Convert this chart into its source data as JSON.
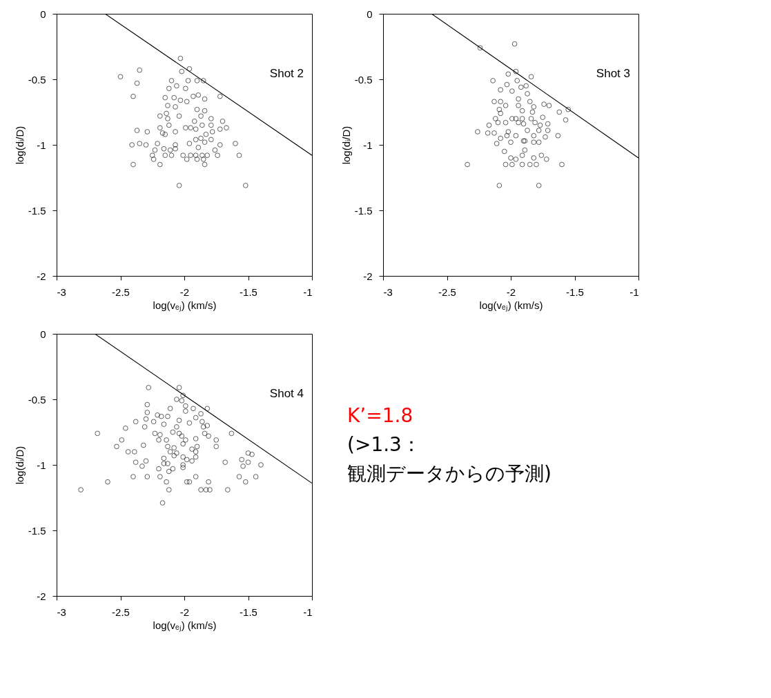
{
  "chart_data": [
    {
      "type": "scatter",
      "xlabel": "log(vₑⱼ) (km/s)",
      "ylabel": "log(dᵢ/D)",
      "annotations": [
        "Shot 2"
      ],
      "xlim": [
        -3,
        -1
      ],
      "ylim": [
        -2,
        0
      ],
      "xticks": [
        -3,
        -2.5,
        -2,
        -1.5,
        -1
      ],
      "yticks": [
        -2,
        -1.5,
        -1,
        -0.5,
        0
      ],
      "grid": false,
      "series": [
        {
          "color": "#000000",
          "marker": "circle",
          "x": [
            -2.5,
            -2.35,
            -2.37,
            -2.4,
            -2.03,
            -1.96,
            -2.02,
            -1.85,
            -1.9,
            -1.72,
            -2.1,
            -1.97,
            -2.12,
            -2.06,
            -1.99,
            -2.15,
            -2.08,
            -2.03,
            -1.98,
            -1.93,
            -1.89,
            -1.84,
            -2.13,
            -2.07,
            -2.04,
            -2.19,
            -2.14,
            -2.13,
            -2.12,
            -1.9,
            -1.84,
            -1.87,
            -1.79,
            -1.7,
            -1.67,
            -1.72,
            -1.79,
            -1.92,
            -1.95,
            -1.91,
            -1.86,
            -1.99,
            -2.07,
            -2.19,
            -2.17,
            -2.15,
            -2.37,
            -2.29,
            -2.41,
            -2.35,
            -2.3,
            -2.21,
            -2.07,
            -1.96,
            -1.91,
            -1.87,
            -1.79,
            -1.83,
            -1.78,
            -1.84,
            -1.89,
            -1.76,
            -1.72,
            -1.6,
            -1.57,
            -1.74,
            -1.82,
            -1.86,
            -1.91,
            -1.95,
            -2.01,
            -1.98,
            -1.9,
            -1.85,
            -1.84,
            -2.16,
            -2.11,
            -2.07,
            -2.15,
            -2.1,
            -2.23,
            -2.25,
            -2.24,
            -2.19,
            -2.4,
            -2.04,
            -1.52
          ],
          "values": [
            -0.48,
            -0.43,
            -0.53,
            -0.63,
            -0.34,
            -0.42,
            -0.44,
            -0.51,
            -0.51,
            -0.63,
            -0.51,
            -0.51,
            -0.57,
            -0.55,
            -0.57,
            -0.64,
            -0.64,
            -0.66,
            -0.67,
            -0.63,
            -0.62,
            -0.65,
            -0.7,
            -0.71,
            -0.78,
            -0.78,
            -0.76,
            -0.8,
            -0.85,
            -0.73,
            -0.74,
            -0.78,
            -0.8,
            -0.82,
            -0.87,
            -0.88,
            -0.85,
            -0.82,
            -0.87,
            -0.88,
            -0.85,
            -0.87,
            -0.9,
            -0.87,
            -0.91,
            -0.92,
            -0.89,
            -0.9,
            -1.0,
            -0.99,
            -1.0,
            -0.99,
            -1.0,
            -0.99,
            -0.96,
            -0.95,
            -0.96,
            -0.92,
            -0.9,
            -0.98,
            -1.02,
            -1.04,
            -1.0,
            -0.99,
            -1.08,
            -1.08,
            -1.08,
            -1.08,
            -1.08,
            -1.08,
            -1.08,
            -1.11,
            -1.11,
            -1.11,
            -1.15,
            -1.03,
            -1.04,
            -1.03,
            -1.08,
            -1.08,
            -1.04,
            -1.08,
            -1.11,
            -1.15,
            -1.15,
            -1.31,
            -1.31
          ]
        },
        {
          "type": "line",
          "color": "#000000",
          "x": [
            -2.62,
            -1
          ],
          "values": [
            0,
            -1.08
          ]
        }
      ]
    },
    {
      "type": "scatter",
      "xlabel": "log(vₑⱼ) (km/s)",
      "ylabel": "log(dᵢ/D)",
      "annotations": [
        "Shot 3"
      ],
      "xlim": [
        -3,
        -1
      ],
      "ylim": [
        -2,
        0
      ],
      "xticks": [
        -3,
        -2.5,
        -2,
        -1.5,
        -1
      ],
      "yticks": [
        -2,
        -1.5,
        -1,
        -0.5,
        0
      ],
      "grid": false,
      "series": [
        {
          "color": "#000000",
          "marker": "circle",
          "x": [
            -2.24,
            -1.97,
            -1.96,
            -2.02,
            -1.84,
            -2.14,
            -2.03,
            -1.95,
            -1.88,
            -2.08,
            -1.99,
            -1.92,
            -1.87,
            -1.94,
            -1.85,
            -2.13,
            -2.08,
            -2.04,
            -1.94,
            -1.82,
            -1.74,
            -1.7,
            -1.62,
            -1.55,
            -1.57,
            -1.91,
            -2.09,
            -2.08,
            -1.83,
            -2.12,
            -1.99,
            -1.96,
            -1.91,
            -1.84,
            -1.75,
            -2.17,
            -2.1,
            -2.04,
            -1.94,
            -1.9,
            -1.81,
            -1.77,
            -1.71,
            -2.26,
            -2.18,
            -2.13,
            -2.02,
            -1.87,
            -1.78,
            -1.71,
            -1.63,
            -1.73,
            -1.82,
            -1.96,
            -2.03,
            -2.08,
            -2.11,
            -2.0,
            -1.9,
            -1.89,
            -1.82,
            -1.78,
            -2.05,
            -1.89,
            -1.91,
            -1.76,
            -1.72,
            -2.0,
            -1.96,
            -1.82,
            -2.34,
            -2.04,
            -1.99,
            -1.91,
            -1.85,
            -1.8,
            -1.6,
            -2.09,
            -1.78
          ],
          "values": [
            -0.26,
            -0.23,
            -0.44,
            -0.46,
            -0.48,
            -0.51,
            -0.54,
            -0.51,
            -0.55,
            -0.58,
            -0.59,
            -0.56,
            -0.61,
            -0.65,
            -0.67,
            -0.67,
            -0.67,
            -0.7,
            -0.7,
            -0.71,
            -0.69,
            -0.7,
            -0.75,
            -0.73,
            -0.81,
            -0.74,
            -0.73,
            -0.76,
            -0.75,
            -0.8,
            -0.8,
            -0.8,
            -0.8,
            -0.8,
            -0.79,
            -0.85,
            -0.83,
            -0.83,
            -0.83,
            -0.84,
            -0.83,
            -0.85,
            -0.84,
            -0.9,
            -0.91,
            -0.91,
            -0.9,
            -0.89,
            -0.89,
            -0.89,
            -0.93,
            -0.94,
            -0.93,
            -0.93,
            -0.93,
            -0.95,
            -0.99,
            -0.98,
            -0.97,
            -0.97,
            -0.98,
            -0.98,
            -1.05,
            -1.04,
            -1.08,
            -1.08,
            -1.11,
            -1.1,
            -1.11,
            -1.1,
            -1.15,
            -1.15,
            -1.15,
            -1.15,
            -1.15,
            -1.15,
            -1.15,
            -1.31,
            -1.31
          ]
        },
        {
          "type": "line",
          "color": "#000000",
          "x": [
            -2.62,
            -1
          ],
          "values": [
            0,
            -1.1
          ]
        }
      ]
    },
    {
      "type": "scatter",
      "xlabel": "log(vₑⱼ) (km/s)",
      "ylabel": "log(dᵢ/D)",
      "annotations": [
        "Shot 4"
      ],
      "xlim": [
        -3,
        -1
      ],
      "ylim": [
        -2,
        0
      ],
      "xticks": [
        -3,
        -2.5,
        -2,
        -1.5,
        -1
      ],
      "yticks": [
        -2,
        -1.5,
        -1,
        -0.5,
        0
      ],
      "grid": false,
      "series": [
        {
          "color": "#000000",
          "marker": "circle",
          "x": [
            -2.28,
            -2.04,
            -2.01,
            -2.06,
            -2.02,
            -2.29,
            -1.99,
            -2.11,
            -1.93,
            -1.82,
            -1.99,
            -1.87,
            -2.29,
            -2.21,
            -2.18,
            -2.13,
            -1.91,
            -2.3,
            -2.24,
            -2.04,
            -1.86,
            -2.38,
            -2.16,
            -1.96,
            -1.82,
            -2.46,
            -2.31,
            -2.06,
            -1.85,
            -2.68,
            -1.63,
            -2.09,
            -2.04,
            -2.23,
            -1.84,
            -2.49,
            -2.19,
            -2.2,
            -2.14,
            -2.02,
            -1.99,
            -1.91,
            -1.81,
            -1.75,
            -2.53,
            -2.32,
            -2.13,
            -2.08,
            -2.01,
            -1.94,
            -1.9,
            -1.75,
            -2.44,
            -2.39,
            -2.11,
            -2.06,
            -1.91,
            -2.08,
            -2.01,
            -1.91,
            -1.5,
            -1.47,
            -2.3,
            -2.16,
            -1.98,
            -1.94,
            -1.55,
            -1.5,
            -2.38,
            -2.33,
            -2.16,
            -2.13,
            -1.68,
            -1.54,
            -1.4,
            -2.2,
            -2.09,
            -2.01,
            -2.12,
            -2.01,
            -2.4,
            -2.29,
            -2.19,
            -1.91,
            -1.57,
            -1.44,
            -2.6,
            -2.14,
            -1.98,
            -1.96,
            -1.81,
            -1.52,
            -2.81,
            -2.12,
            -1.87,
            -1.83,
            -1.8,
            -1.66,
            -2.17
          ],
          "values": [
            -0.41,
            -0.41,
            -0.47,
            -0.5,
            -0.51,
            -0.54,
            -0.55,
            -0.57,
            -0.57,
            -0.57,
            -0.59,
            -0.61,
            -0.6,
            -0.62,
            -0.63,
            -0.63,
            -0.64,
            -0.65,
            -0.67,
            -0.66,
            -0.67,
            -0.67,
            -0.69,
            -0.68,
            -0.7,
            -0.72,
            -0.71,
            -0.71,
            -0.71,
            -0.76,
            -0.76,
            -0.75,
            -0.76,
            -0.76,
            -0.76,
            -0.81,
            -0.77,
            -0.81,
            -0.81,
            -0.78,
            -0.81,
            -0.8,
            -0.78,
            -0.81,
            -0.86,
            -0.85,
            -0.86,
            -0.87,
            -0.84,
            -0.88,
            -0.86,
            -0.86,
            -0.9,
            -0.9,
            -0.9,
            -0.91,
            -0.9,
            -0.93,
            -0.94,
            -0.94,
            -0.91,
            -0.92,
            -0.97,
            -0.95,
            -0.96,
            -0.97,
            -0.96,
            -0.98,
            -0.98,
            -1.01,
            -0.99,
            -0.99,
            -0.98,
            -1.01,
            -1.0,
            -1.03,
            -1.03,
            -1.02,
            -1.05,
            -1.0,
            -1.09,
            -1.09,
            -1.09,
            -1.09,
            -1.09,
            -1.09,
            -1.13,
            -1.13,
            -1.13,
            -1.13,
            -1.13,
            -1.13,
            -1.19,
            -1.19,
            -1.19,
            -1.19,
            -1.19,
            -1.19,
            -1.29
          ]
        },
        {
          "type": "line",
          "color": "#000000",
          "x": [
            -2.7,
            -1
          ],
          "values": [
            0,
            -1.14
          ]
        }
      ]
    },
    {
      "type": "other",
      "annotations": [
        "K’=1.8",
        "(>1.3：",
        "観測データからの予測)"
      ],
      "colors": [
        "#ff0000",
        "#000000",
        "#000000"
      ]
    }
  ]
}
